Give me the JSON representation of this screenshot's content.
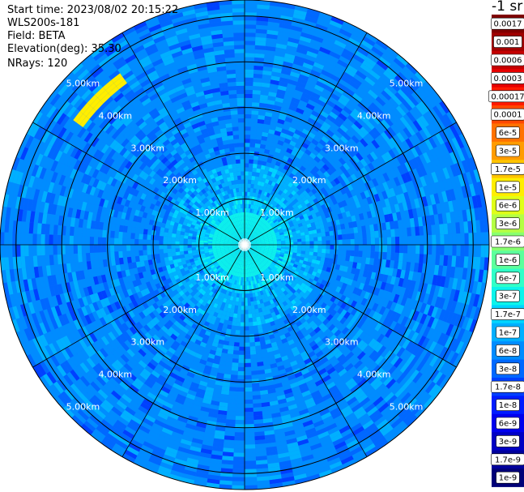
{
  "header": {
    "start_time": "Start time: 2023/08/02 20:15:22",
    "device": "WLS200s-181",
    "field": "Field: BETA",
    "elevation": "Elevation(deg): 35.30",
    "nrays": "NRays: 120"
  },
  "legend": {
    "title": "-1 sr",
    "labels": [
      "0.0017",
      "0.001",
      "0.0006",
      "0.0003",
      "0.00017",
      "0.0001",
      "6e-5",
      "3e-5",
      "1.7e-5",
      "1e-5",
      "6e-6",
      "3e-6",
      "1.7e-6",
      "1e-6",
      "6e-7",
      "3e-7",
      "1.7e-7",
      "1e-7",
      "6e-8",
      "3e-8",
      "1.7e-8",
      "1e-8",
      "6e-9",
      "3e-9",
      "1.7e-9",
      "1e-9"
    ],
    "colors": [
      "#800000",
      "#a00000",
      "#c40000",
      "#e60000",
      "#ff1a00",
      "#ff4800",
      "#ff7200",
      "#ff9c00",
      "#ffc400",
      "#ffee00",
      "#e0ff18",
      "#b4ff44",
      "#88ff70",
      "#5cff9c",
      "#30ffc8",
      "#0cf4eb",
      "#00d4ff",
      "#00b0ff",
      "#008cff",
      "#0068ff",
      "#0040ff",
      "#001cff",
      "#0000ee",
      "#0000c4",
      "#00009c",
      "#000078"
    ]
  },
  "chart_data": {
    "type": "polar-ppi",
    "field": "BETA",
    "units": "-1 sr",
    "elevation_deg": 35.3,
    "n_rays": 120,
    "ring_labels": [
      "1.00km",
      "2.00km",
      "3.00km",
      "4.00km",
      "5.00km"
    ],
    "range_km_max": 5.0,
    "spoke_angles_deg": [
      0,
      30,
      60,
      90,
      120,
      150,
      180,
      210,
      240,
      270,
      300,
      330
    ],
    "dominant_value_range": [
      "3e-8",
      "1e-7"
    ],
    "near_center_value": "1.7e-7",
    "feature": {
      "description_value": "1e-5",
      "range_km": 4.5,
      "azimuth_deg": 315
    }
  }
}
